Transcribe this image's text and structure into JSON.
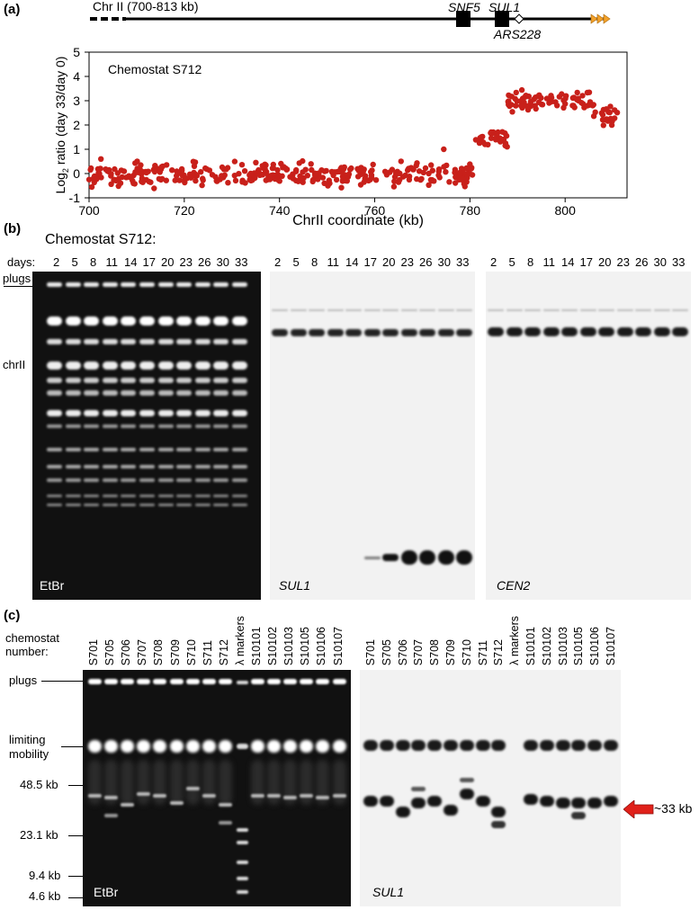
{
  "panel_a": {
    "label": "(a)",
    "map": {
      "region_label": "Chr II (700-813 kb)",
      "genes": [
        "SNF5",
        "SUL1"
      ],
      "ars": "ARS228"
    },
    "plot_inset": "Chemostat S712",
    "chart_data": {
      "type": "scatter",
      "title": "",
      "xlabel": "ChrII coordinate (kb)",
      "ylabel_main": "Log",
      "ylabel_sub": "2",
      "ylabel_rest": " ratio (day 33/day 0)",
      "xlim": [
        700,
        813
      ],
      "ylim": [
        -1,
        5
      ],
      "xticks": [
        "700",
        "720",
        "740",
        "760",
        "780",
        "800"
      ],
      "yticks": [
        "-1",
        "0",
        "1",
        "2",
        "3",
        "4",
        "5"
      ],
      "grid": false,
      "point_color": "#c8201a",
      "segments": [
        {
          "x_start": 700,
          "x_end": 781,
          "mean": 0.0,
          "spread": 0.3
        },
        {
          "x_start": 781,
          "x_end": 788,
          "mean": 1.5,
          "spread": 0.25
        },
        {
          "x_start": 788,
          "x_end": 806,
          "mean": 3.0,
          "spread": 0.25
        },
        {
          "x_start": 806,
          "x_end": 811,
          "mean": 2.4,
          "spread": 0.3
        }
      ],
      "outliers": [
        {
          "x": 774.5,
          "y": 1.0
        },
        {
          "x": 702.5,
          "y": 0.6
        }
      ]
    }
  },
  "panel_b": {
    "label": "(b)",
    "title": "Chemostat S712:",
    "days_label": "days:",
    "days": [
      "2",
      "5",
      "8",
      "11",
      "14",
      "17",
      "20",
      "23",
      "26",
      "30",
      "33"
    ],
    "row_labels": {
      "plugs": "plugs",
      "chrII": "chrII"
    },
    "gel_label": "EtBr",
    "blot1_label": "SUL1",
    "blot2_label": "CEN2"
  },
  "panel_c": {
    "label": "(c)",
    "side_header_1": "chemostat",
    "side_header_2": "number:",
    "lanes": [
      "S701",
      "S705",
      "S706",
      "S707",
      "S708",
      "S709",
      "S710",
      "S711",
      "S712",
      "λ markers",
      "S10101",
      "S10102",
      "S10103",
      "S10105",
      "S10106",
      "S10107"
    ],
    "row_labels": {
      "plugs": "plugs",
      "limiting_1": "limiting",
      "limiting_2": "mobility",
      "m48": "48.5 kb",
      "m23": "23.1 kb",
      "m9": "9.4 kb",
      "m4": "4.6 kb"
    },
    "gel_label": "EtBr",
    "blot_label": "SUL1",
    "arrow_label": "~33 kb",
    "arrow_color": "#e0211a"
  }
}
